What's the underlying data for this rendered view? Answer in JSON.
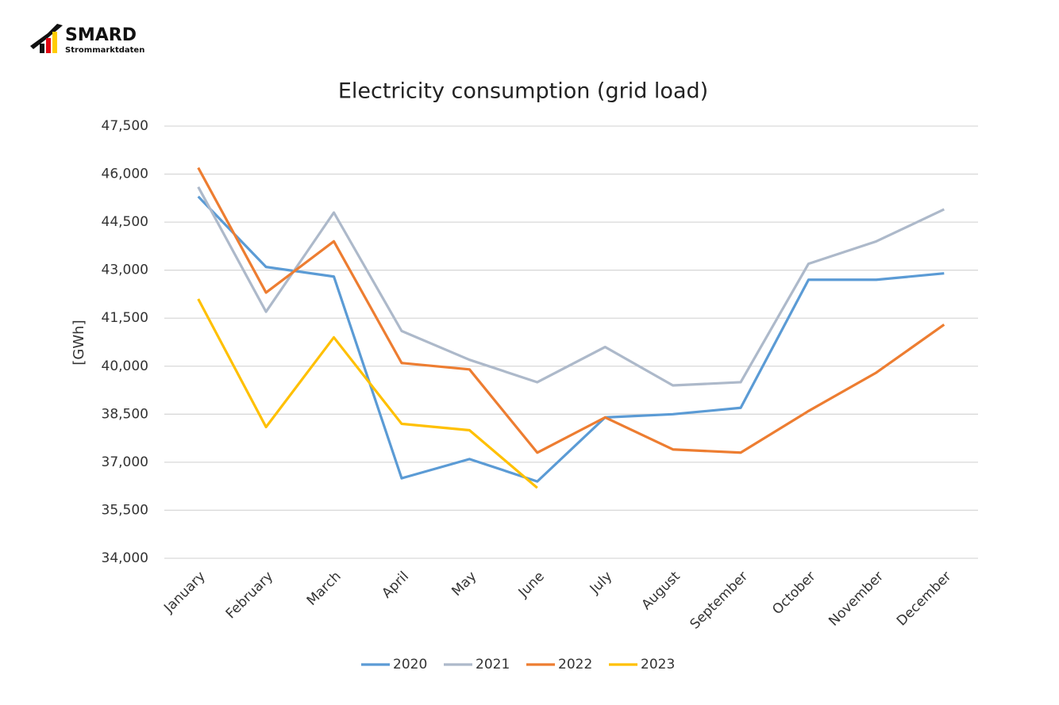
{
  "logo": {
    "title": "SMARD",
    "subtitle": "Strommarktdaten"
  },
  "chart_data": {
    "type": "line",
    "title": "Electricity consumption (grid load)",
    "y_label": "[GWh]",
    "categories": [
      "January",
      "February",
      "March",
      "April",
      "May",
      "June",
      "July",
      "August",
      "September",
      "October",
      "November",
      "December"
    ],
    "series": [
      {
        "name": "2020",
        "color": "#5b9bd5",
        "values": [
          45300,
          43100,
          42800,
          36500,
          37100,
          36400,
          38400,
          38500,
          38700,
          42700,
          42700,
          42900
        ]
      },
      {
        "name": "2021",
        "color": "#adb9ca",
        "values": [
          45600,
          41700,
          44800,
          41100,
          40200,
          39500,
          40600,
          39400,
          39500,
          43200,
          43900,
          44900
        ]
      },
      {
        "name": "2022",
        "color": "#ed7d31",
        "values": [
          46200,
          42300,
          43900,
          40100,
          39900,
          37300,
          38400,
          37400,
          37300,
          38600,
          39800,
          41300
        ]
      },
      {
        "name": "2023",
        "color": "#ffc000",
        "values": [
          42100,
          38100,
          40900,
          38200,
          38000,
          36200,
          null,
          null,
          null,
          null,
          null,
          null
        ]
      }
    ],
    "ylim": [
      34000,
      47500
    ],
    "yticks": [
      {
        "value": 34000,
        "label": "34,000"
      },
      {
        "value": 35500,
        "label": "35,500"
      },
      {
        "value": 37000,
        "label": "37,000"
      },
      {
        "value": 38500,
        "label": "38,500"
      },
      {
        "value": 40000,
        "label": "40,000"
      },
      {
        "value": 41500,
        "label": "41,500"
      },
      {
        "value": 43000,
        "label": "43,000"
      },
      {
        "value": 44500,
        "label": "44,500"
      },
      {
        "value": 46000,
        "label": "46,000"
      },
      {
        "value": 47500,
        "label": "47,500"
      }
    ],
    "grid": true,
    "legend": "bottom"
  }
}
